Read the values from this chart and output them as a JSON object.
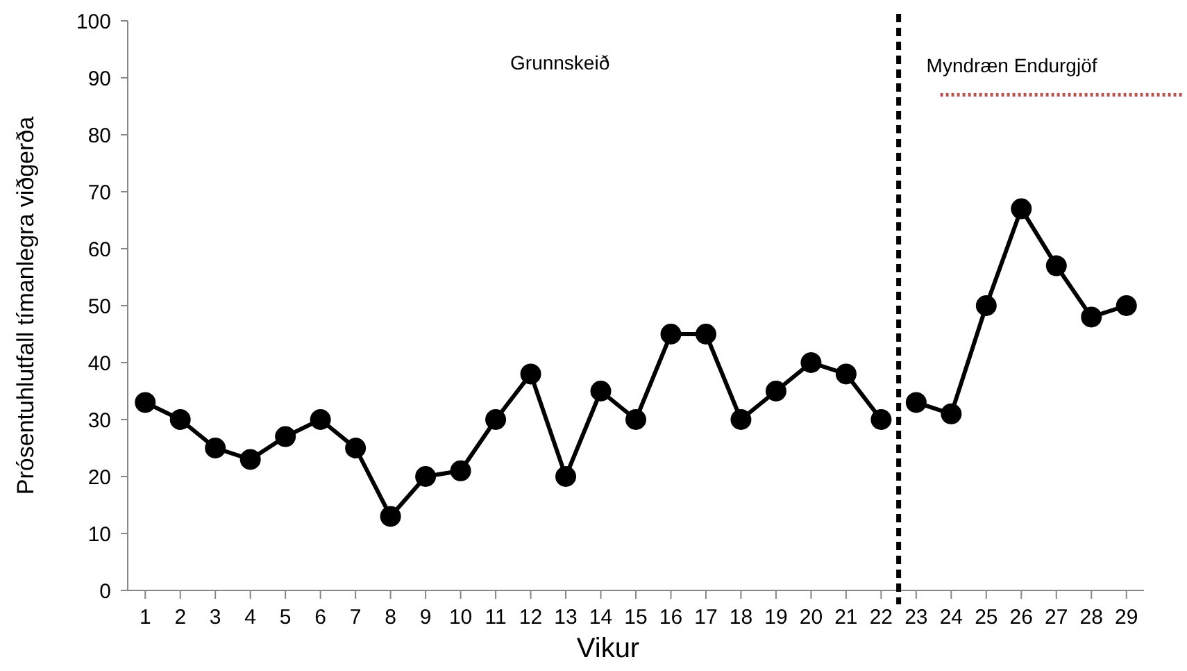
{
  "chart_data": {
    "type": "line",
    "xlabel": "Vikur",
    "ylabel": "Prósentuhlutfall tímanlegra viðgerða",
    "xlim": [
      0.5,
      29.5
    ],
    "xticks": [
      1,
      2,
      3,
      4,
      5,
      6,
      7,
      8,
      9,
      10,
      11,
      12,
      13,
      14,
      15,
      16,
      17,
      18,
      19,
      20,
      21,
      22,
      23,
      24,
      25,
      26,
      27,
      28,
      29
    ],
    "ylim": [
      0,
      100
    ],
    "yticks": [
      0,
      10,
      20,
      30,
      40,
      50,
      60,
      70,
      80,
      90,
      100
    ],
    "series": [
      {
        "color": "#000000",
        "x": [
          1,
          2,
          3,
          4,
          5,
          6,
          7,
          8,
          9,
          10,
          11,
          12,
          13,
          14,
          15,
          16,
          17,
          18,
          19,
          20,
          21,
          22
        ],
        "values": [
          33,
          30,
          25,
          23,
          27,
          30,
          25,
          13,
          20,
          21,
          30,
          38,
          20,
          35,
          30,
          45,
          45,
          30,
          35,
          40,
          38,
          30
        ]
      },
      {
        "color": "#000000",
        "x": [
          23,
          24,
          25,
          26,
          27,
          28,
          29
        ],
        "values": [
          33,
          31,
          50,
          67,
          57,
          48,
          50
        ]
      }
    ],
    "ref_lines": [
      {
        "axis": "x",
        "value": 22.5,
        "color": "#000000",
        "line_style": "dashed"
      },
      {
        "axis": "y",
        "value": 87,
        "color": "#c0504d",
        "line_style": "dotted"
      }
    ],
    "annotations": [
      "Grunnskeið",
      "Myndræn Endurgjöf"
    ],
    "marker": "circle",
    "line_style": "solid",
    "grid": false
  }
}
